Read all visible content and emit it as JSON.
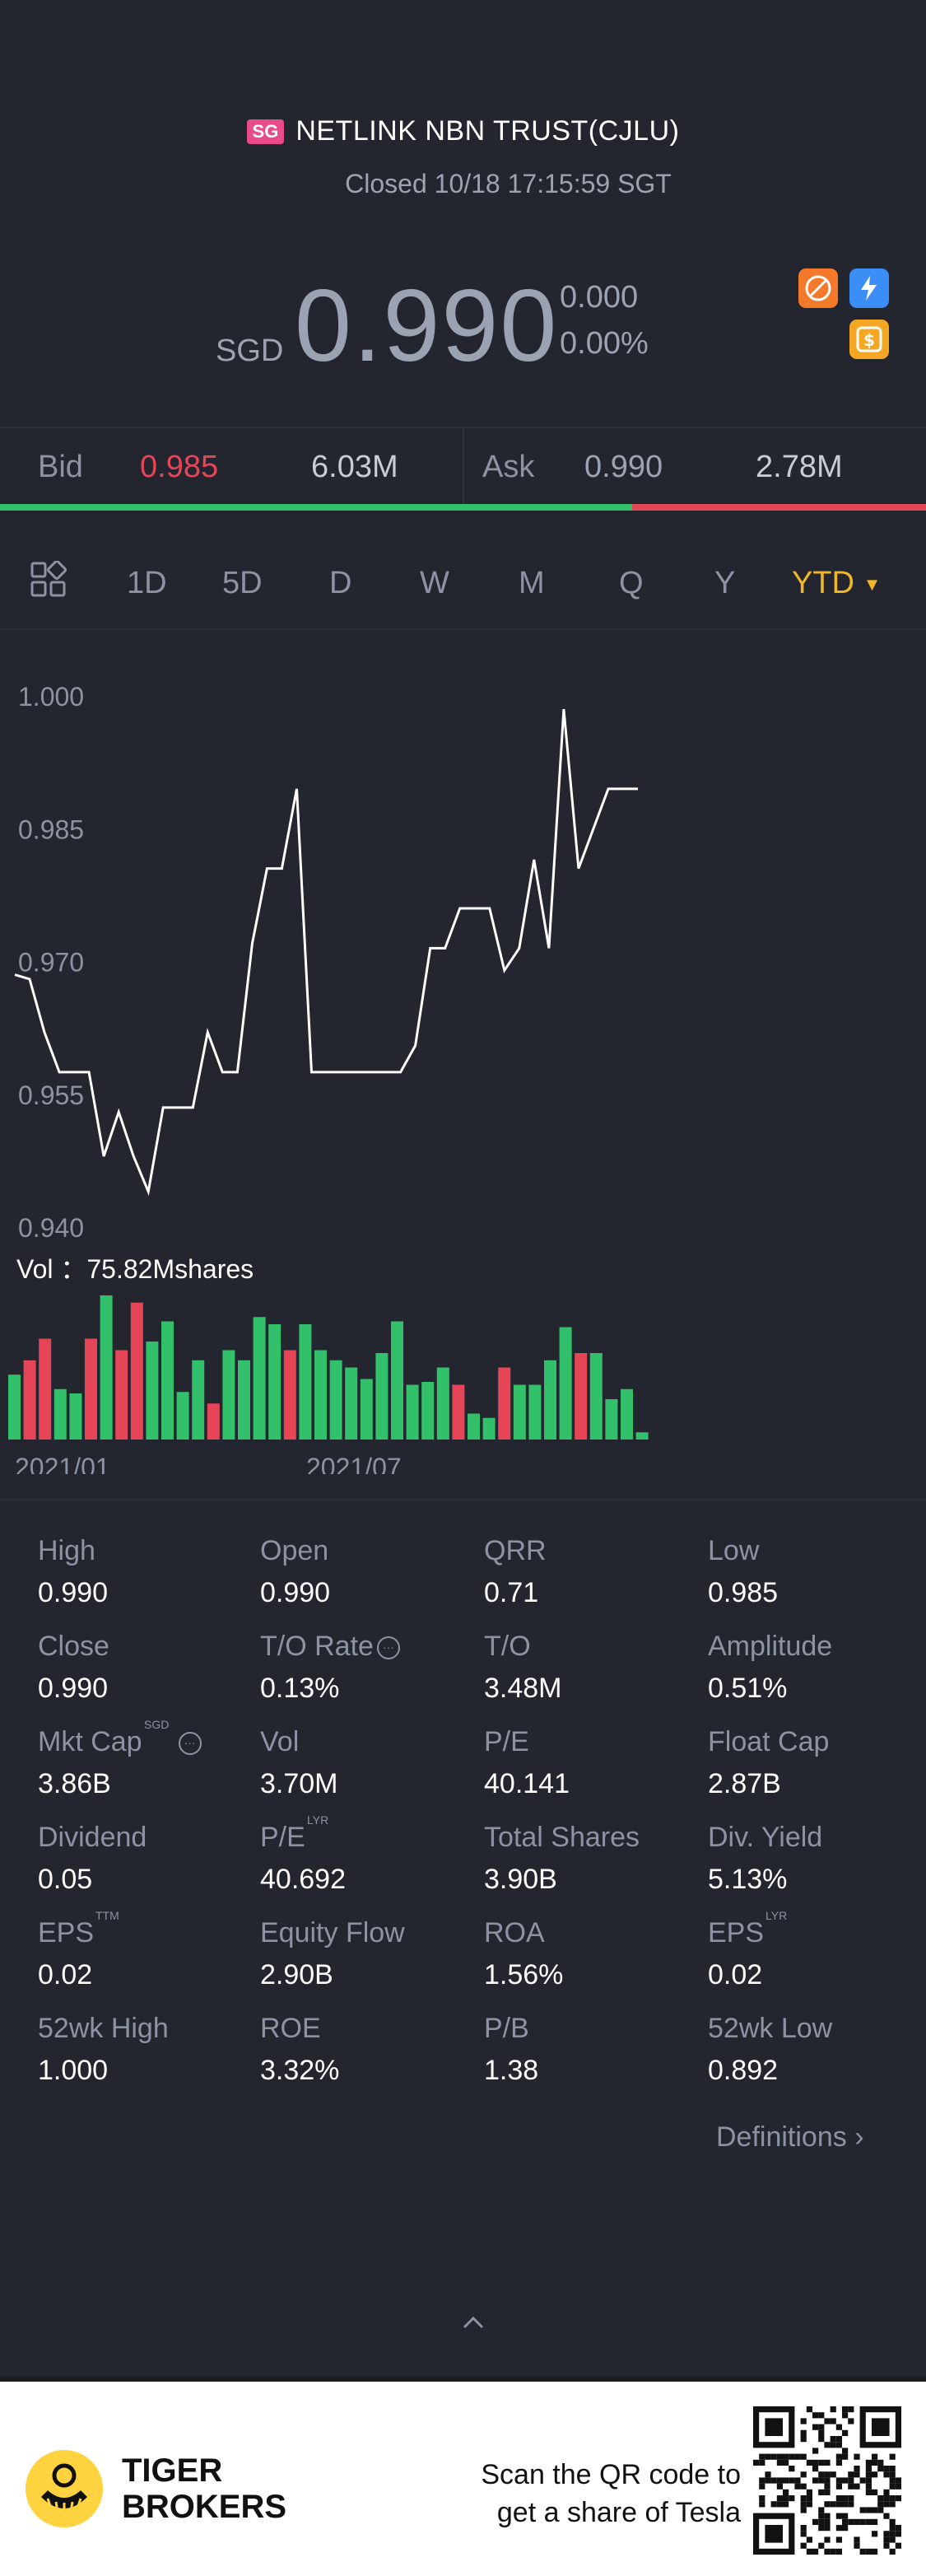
{
  "header": {
    "market_badge": "SG",
    "title": "NETLINK NBN TRUST(CJLU)",
    "status": "Closed 10/18 17:15:59 SGT",
    "currency": "SGD",
    "price": "0.990",
    "change": "0.000",
    "change_pct": "0.00%",
    "icons": [
      "no-short-icon",
      "lightning-icon",
      "dollar-icon"
    ]
  },
  "bidask": {
    "bid_label": "Bid",
    "bid_price": "0.985",
    "bid_size": "6.03M",
    "ask_label": "Ask",
    "ask_price": "0.990",
    "ask_size": "2.78M",
    "bid_share": 0.683,
    "colors": {
      "bid": "#e64457",
      "bid_bar": "#32c06b",
      "ask_bar": "#e64457"
    }
  },
  "tabs": {
    "items": [
      "1D",
      "5D",
      "D",
      "W",
      "M",
      "Q",
      "Y",
      "YTD"
    ],
    "active": "YTD",
    "active_color": "#f0b726"
  },
  "chart_data": {
    "type": "line",
    "ylim": [
      0.94,
      1.0
    ],
    "y_ticks": [
      "1.000",
      "0.985",
      "0.970",
      "0.955",
      "0.940"
    ],
    "x_ticks": [
      "2021/01",
      "2021/07"
    ],
    "volume_label": "Vol ：75.82Mshares",
    "price_series": [
      0.9685,
      0.968,
      0.962,
      0.9575,
      0.9575,
      0.9575,
      0.948,
      0.953,
      0.948,
      0.944,
      0.9535,
      0.9535,
      0.9535,
      0.962,
      0.9575,
      0.9575,
      0.972,
      0.9805,
      0.9805,
      0.9895,
      0.9575,
      0.9575,
      0.9575,
      0.9575,
      0.9575,
      0.9575,
      0.9575,
      0.9605,
      0.9715,
      0.9715,
      0.976,
      0.976,
      0.976,
      0.969,
      0.9715,
      0.9815,
      0.9715,
      0.9985,
      0.9805,
      0.985,
      0.9895,
      0.9895,
      0.9895
    ],
    "volume_series": [
      0.45,
      0.55,
      0.7,
      0.35,
      0.32,
      0.7,
      1.0,
      0.62,
      0.95,
      0.68,
      0.82,
      0.33,
      0.55,
      0.25,
      0.62,
      0.55,
      0.85,
      0.8,
      0.62,
      0.8,
      0.62,
      0.55,
      0.5,
      0.42,
      0.6,
      0.82,
      0.38,
      0.4,
      0.5,
      0.38,
      0.18,
      0.15,
      0.5,
      0.38,
      0.38,
      0.55,
      0.78,
      0.6,
      0.6,
      0.28,
      0.35,
      0.05
    ],
    "volume_colors": [
      "g",
      "r",
      "r",
      "g",
      "g",
      "r",
      "g",
      "r",
      "r",
      "g",
      "g",
      "g",
      "g",
      "r",
      "g",
      "g",
      "g",
      "g",
      "r",
      "g",
      "g",
      "g",
      "g",
      "g",
      "g",
      "g",
      "g",
      "g",
      "g",
      "r",
      "g",
      "g",
      "r",
      "g",
      "g",
      "g",
      "g",
      "r",
      "g",
      "g",
      "g",
      "g"
    ]
  },
  "stats": [
    {
      "label": "High",
      "value": "0.990"
    },
    {
      "label": "Open",
      "value": "0.990"
    },
    {
      "label": "QRR",
      "value": "0.71"
    },
    {
      "label": "Low",
      "value": "0.985"
    },
    {
      "label": "Close",
      "value": "0.990"
    },
    {
      "label": "T/O Rate",
      "value": "0.13%"
    },
    {
      "label": "T/O",
      "value": "3.48M"
    },
    {
      "label": "Amplitude",
      "value": "0.51%"
    },
    {
      "label": "Mkt Cap",
      "sup": "SGD",
      "value": "3.86B"
    },
    {
      "label": "Vol",
      "value": "3.70M"
    },
    {
      "label": "P/E",
      "value": "40.141"
    },
    {
      "label": "Float Cap",
      "value": "2.87B"
    },
    {
      "label": "Dividend",
      "value": "0.05"
    },
    {
      "label": "P/E",
      "sup": "LYR",
      "value": "40.692"
    },
    {
      "label": "Total Shares",
      "value": "3.90B"
    },
    {
      "label": "Div. Yield",
      "value": "5.13%"
    },
    {
      "label": "EPS",
      "sup": "TTM",
      "value": "0.02"
    },
    {
      "label": "Equity Flow",
      "value": "2.90B"
    },
    {
      "label": "ROA",
      "value": "1.56%"
    },
    {
      "label": "EPS",
      "sup": "LYR",
      "value": "0.02"
    },
    {
      "label": "52wk High",
      "value": "1.000"
    },
    {
      "label": "ROE",
      "value": "3.32%"
    },
    {
      "label": "P/B",
      "value": "1.38"
    },
    {
      "label": "52wk Low",
      "value": "0.892"
    }
  ],
  "definitions_label": "Definitions",
  "footer": {
    "brand_line1": "TIGER",
    "brand_line2": "BROKERS",
    "scan_line1": "Scan the QR code to",
    "scan_line2": "get a share of Tesla"
  }
}
